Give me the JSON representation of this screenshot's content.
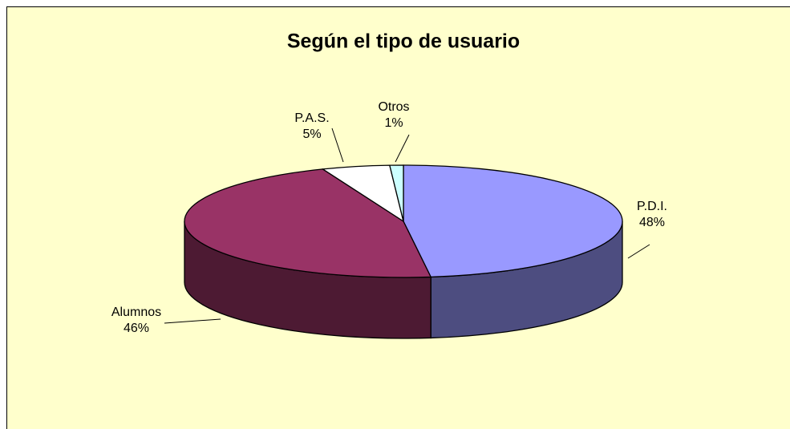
{
  "chart_data": {
    "type": "pie",
    "title": "Según el tipo de usuario",
    "categories": [
      "P.D.I.",
      "Alumnos",
      "P.A.S.",
      "Otros"
    ],
    "values": [
      48,
      46,
      5,
      1
    ],
    "value_labels": [
      "48%",
      "46%",
      "5%",
      "1%"
    ],
    "colors": [
      "#9999ff",
      "#993366",
      "#ffffff",
      "#ccffff"
    ],
    "background": "#ffffcc"
  }
}
